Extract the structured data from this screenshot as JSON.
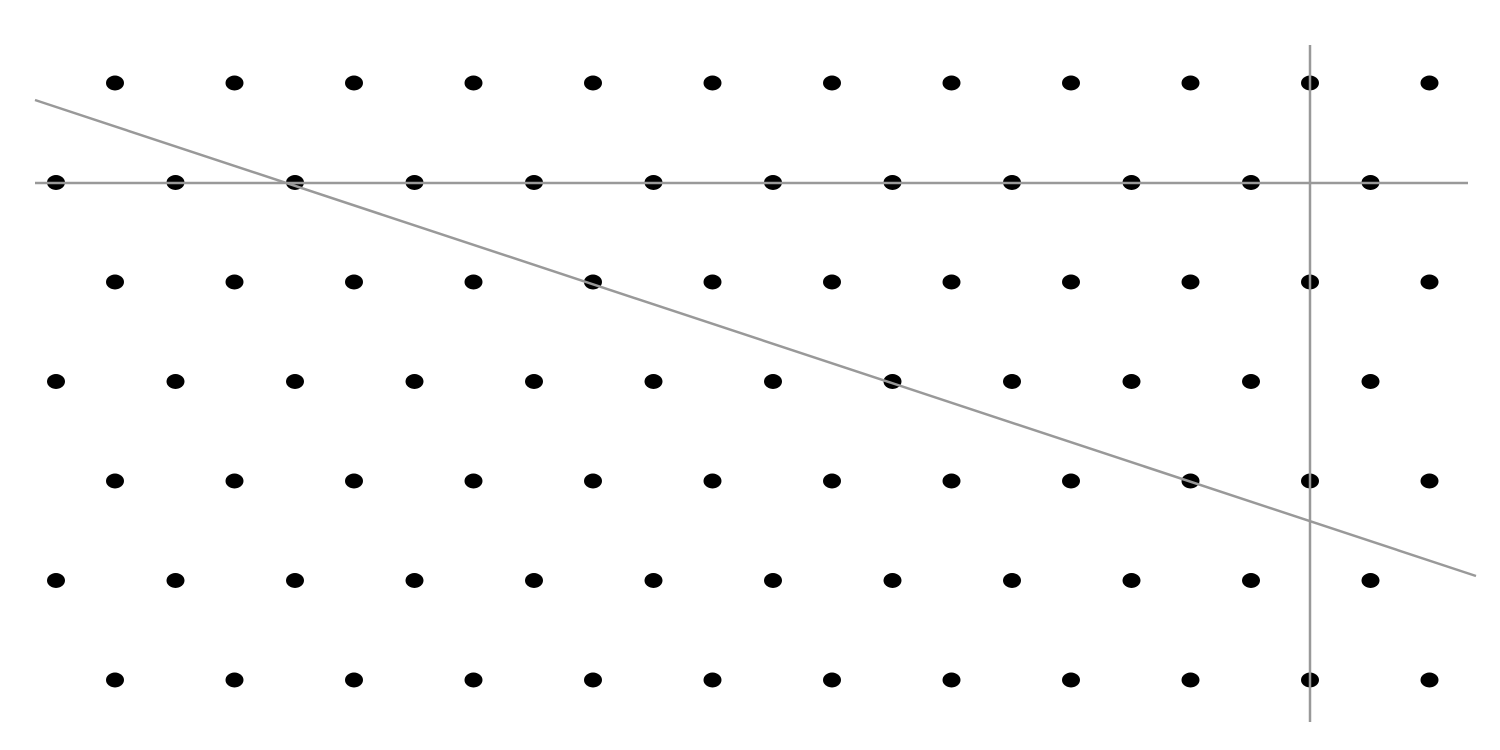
{
  "diagram": {
    "type": "triangular-lattice",
    "rows": 7,
    "dots_per_row": 12,
    "dot_color": "#000000",
    "line_color": "#999999",
    "background": "#ffffff",
    "lines": [
      {
        "name": "horizontal-line",
        "through_row": 2
      },
      {
        "name": "vertical-line",
        "through_column": 11
      },
      {
        "name": "diagonal-line"
      }
    ]
  }
}
